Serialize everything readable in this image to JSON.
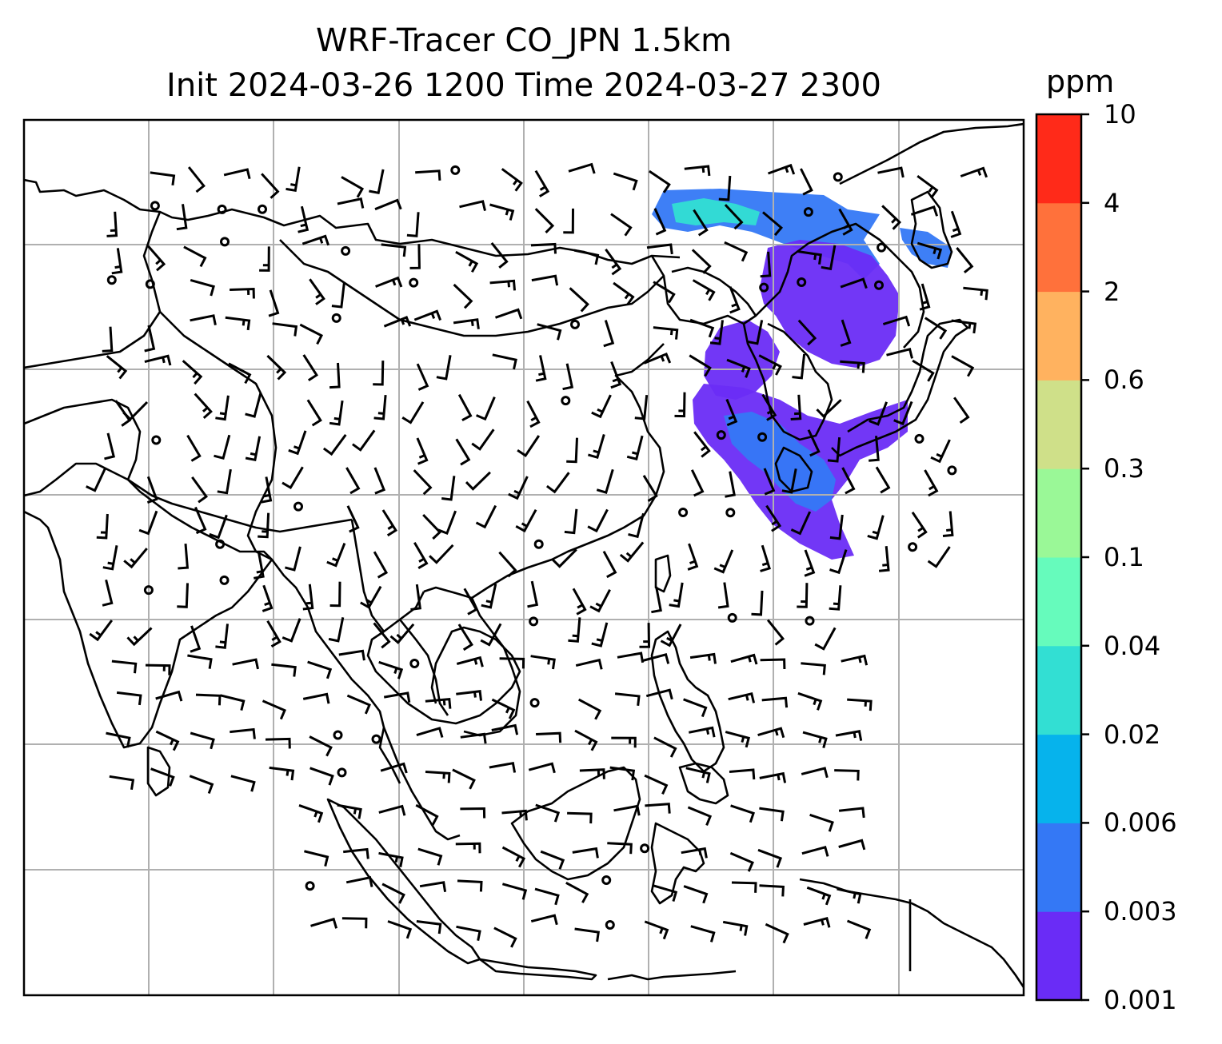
{
  "title": {
    "line1": "WRF-Tracer CO_JPN 1.5km",
    "line2": "Init 2024-03-26 1200 Time 2024-03-27 2300"
  },
  "colorbar": {
    "units": "ppm",
    "levels": [
      "0.001",
      "0.003",
      "0.006",
      "0.02",
      "0.04",
      "0.1",
      "0.3",
      "0.6",
      "2",
      "4",
      "10"
    ],
    "colors": [
      "#6a2cf6",
      "#3478f5",
      "#06b3ec",
      "#32dfd3",
      "#66fbbc",
      "#9af897",
      "#cfe089",
      "#ffb25f",
      "#ff713b",
      "#ff2a19"
    ]
  },
  "map": {
    "region": "East and Southeast Asia",
    "gridlines": true,
    "coastlines": true,
    "wind_barbs": true,
    "plume_colors": {
      "primary": "#6a2cf6",
      "secondary": "#3478f5",
      "tertiary": "#32dfd3"
    }
  }
}
